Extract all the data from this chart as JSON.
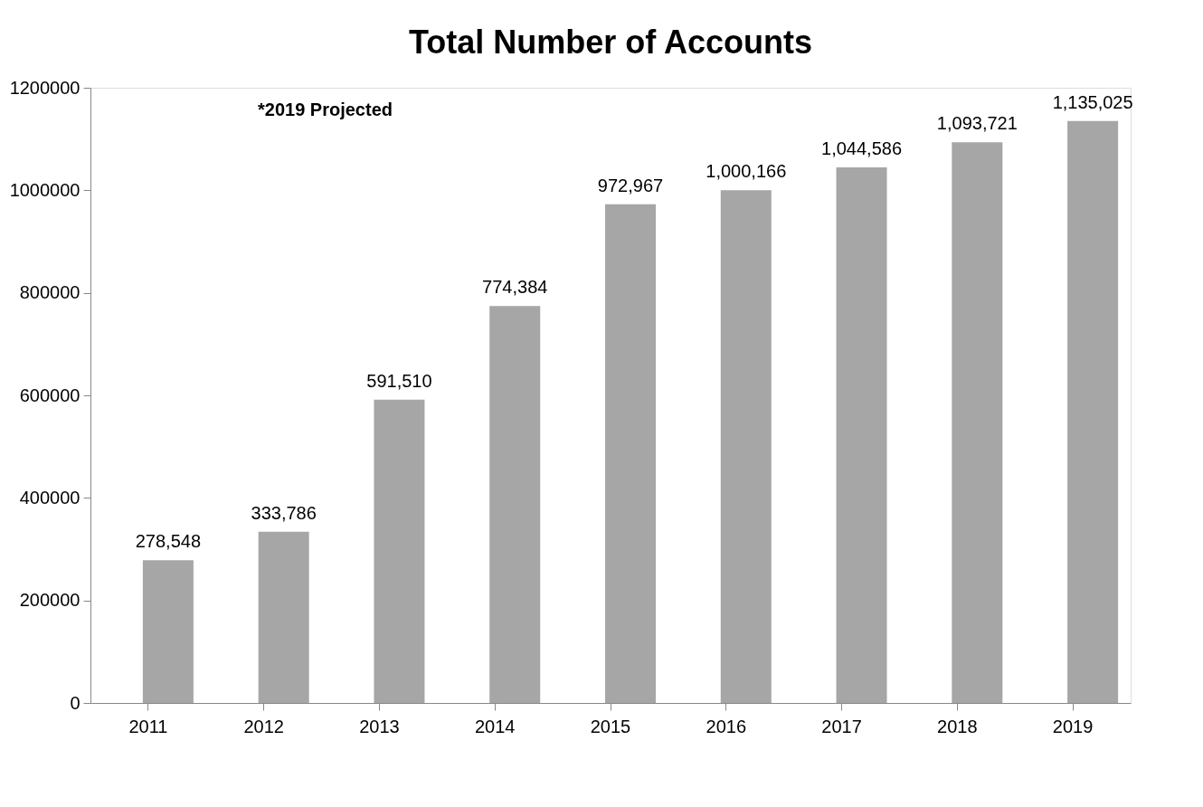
{
  "chart_data": {
    "type": "bar",
    "title": "Total Number of Accounts",
    "categories": [
      "2011",
      "2012",
      "2013",
      "2014",
      "2015",
      "2016",
      "2017",
      "2018",
      "2019"
    ],
    "series": [
      {
        "color": "#a6a6a6",
        "values": [
          278548,
          333786,
          591510,
          774384,
          972967,
          1000166,
          1044586,
          1093721,
          1135025
        ],
        "value_labels": [
          "278,548",
          "333,786",
          "591,510",
          "774,384",
          "972,967",
          "1,000,166",
          "1,044,586",
          "1,093,721",
          "1,135,025"
        ]
      }
    ],
    "ylim": [
      0,
      1200000
    ],
    "yticks": [
      0,
      200000,
      400000,
      600000,
      800000,
      1000000,
      1200000
    ],
    "grid": false,
    "annotations": [
      "*2019 Projected"
    ]
  }
}
